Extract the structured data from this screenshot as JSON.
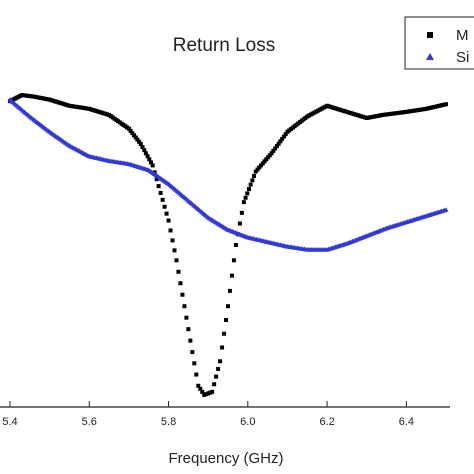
{
  "chart_data": {
    "type": "scatter",
    "title": "Return Loss",
    "xlabel": "Frequency (GHz)",
    "ylabel": "",
    "xlim": [
      5.4,
      6.5
    ],
    "ylim": [
      0,
      1
    ],
    "xticks": [
      "5.4",
      "5.6",
      "5.8",
      "6.0",
      "6.2",
      "6.4"
    ],
    "grid": false,
    "legend_position": "top-right",
    "series": [
      {
        "name": "M",
        "color": "#000000",
        "marker": "square",
        "points": [
          [
            5.4,
            0.97
          ],
          [
            5.43,
            0.99
          ],
          [
            5.46,
            0.985
          ],
          [
            5.5,
            0.975
          ],
          [
            5.55,
            0.955
          ],
          [
            5.6,
            0.945
          ],
          [
            5.65,
            0.925
          ],
          [
            5.7,
            0.88
          ],
          [
            5.73,
            0.83
          ],
          [
            5.76,
            0.76
          ],
          [
            5.78,
            0.67
          ],
          [
            5.8,
            0.58
          ],
          [
            5.82,
            0.45
          ],
          [
            5.84,
            0.3
          ],
          [
            5.86,
            0.15
          ],
          [
            5.875,
            0.04
          ],
          [
            5.89,
            0.01
          ],
          [
            5.91,
            0.02
          ],
          [
            5.93,
            0.12
          ],
          [
            5.95,
            0.3
          ],
          [
            5.97,
            0.5
          ],
          [
            5.99,
            0.64
          ],
          [
            6.02,
            0.74
          ],
          [
            6.06,
            0.8
          ],
          [
            6.1,
            0.87
          ],
          [
            6.15,
            0.92
          ],
          [
            6.2,
            0.955
          ],
          [
            6.25,
            0.935
          ],
          [
            6.3,
            0.915
          ],
          [
            6.34,
            0.925
          ],
          [
            6.4,
            0.935
          ],
          [
            6.45,
            0.945
          ],
          [
            6.5,
            0.96
          ]
        ]
      },
      {
        "name": "Si",
        "color": "#3338d6",
        "marker": "triangle",
        "points": [
          [
            5.4,
            0.975
          ],
          [
            5.45,
            0.92
          ],
          [
            5.5,
            0.87
          ],
          [
            5.55,
            0.825
          ],
          [
            5.6,
            0.79
          ],
          [
            5.65,
            0.775
          ],
          [
            5.7,
            0.765
          ],
          [
            5.75,
            0.745
          ],
          [
            5.8,
            0.7
          ],
          [
            5.85,
            0.645
          ],
          [
            5.9,
            0.59
          ],
          [
            5.95,
            0.55
          ],
          [
            6.0,
            0.525
          ],
          [
            6.05,
            0.51
          ],
          [
            6.1,
            0.495
          ],
          [
            6.15,
            0.485
          ],
          [
            6.2,
            0.485
          ],
          [
            6.25,
            0.505
          ],
          [
            6.3,
            0.53
          ],
          [
            6.35,
            0.555
          ],
          [
            6.4,
            0.575
          ],
          [
            6.45,
            0.595
          ],
          [
            6.5,
            0.615
          ]
        ]
      }
    ]
  }
}
